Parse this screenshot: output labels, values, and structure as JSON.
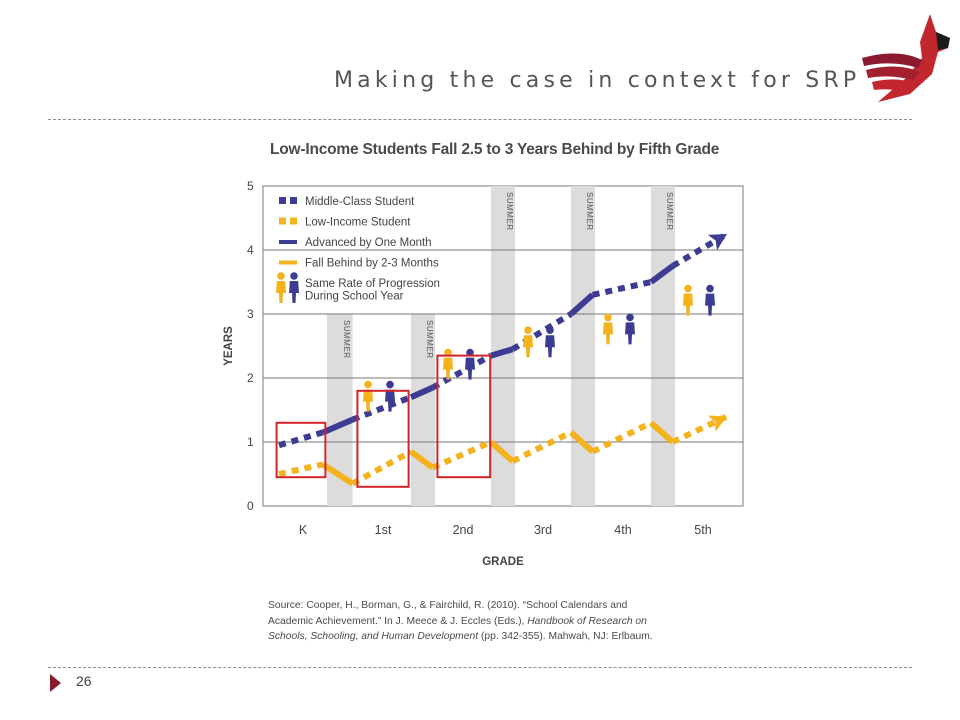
{
  "slide": {
    "title": "Making the case in context for SRP",
    "page_number": "26"
  },
  "colors": {
    "middle_class": "#3c3c92",
    "low_income": "#f4b21c",
    "highlight_box": "#d0232a",
    "summer_band": "#dcdcdc",
    "accent": "#8b1a2e"
  },
  "chart_data": {
    "type": "line",
    "title": "Low-Income Students Fall 2.5 to 3 Years Behind by Fifth Grade",
    "xlabel": "GRADE",
    "ylabel": "YEARS",
    "categories": [
      "K",
      "1st",
      "2nd",
      "3rd",
      "4th",
      "5th"
    ],
    "yticks": [
      "0",
      "1",
      "2",
      "3",
      "4",
      "5"
    ],
    "ylim": [
      0,
      5
    ],
    "grid": true,
    "legend_position": "top-left",
    "legend": [
      "Middle-Class Student",
      "Low-Income Student",
      "Advanced by One Month",
      "Fall Behind by 2-3 Months",
      "Same Rate of Progression During School Year"
    ],
    "summer_label": "SUMMER",
    "series": [
      {
        "name": "Middle-Class Student",
        "color": "#3c3c92",
        "x": [
          -0.3,
          0.25,
          0.62,
          1.35,
          1.62,
          2.35,
          2.62,
          3.35,
          3.62,
          4.35,
          4.62,
          5.3
        ],
        "y": [
          0.95,
          1.15,
          1.35,
          1.7,
          1.85,
          2.35,
          2.45,
          3.0,
          3.3,
          3.5,
          3.75,
          4.25
        ]
      },
      {
        "name": "Low-Income Student",
        "color": "#f4b21c",
        "x": [
          -0.3,
          0.25,
          0.62,
          1.35,
          1.62,
          2.35,
          2.62,
          3.35,
          3.62,
          4.35,
          4.62,
          5.3
        ],
        "y": [
          0.5,
          0.65,
          0.35,
          0.85,
          0.6,
          1.0,
          0.7,
          1.15,
          0.85,
          1.3,
          1.0,
          1.4
        ]
      }
    ],
    "summers": [
      {
        "x_start": 0.3,
        "x_end": 0.62,
        "y_top": 3.0
      },
      {
        "x_start": 1.35,
        "x_end": 1.65,
        "y_top": 3.0
      },
      {
        "x_start": 2.35,
        "x_end": 2.65,
        "y_top": 5.0
      },
      {
        "x_start": 3.35,
        "x_end": 3.65,
        "y_top": 5.0
      },
      {
        "x_start": 4.35,
        "x_end": 4.65,
        "y_top": 5.0
      }
    ],
    "figure_pairs": [
      {
        "x": 0.95,
        "y": 1.6
      },
      {
        "x": 1.95,
        "y": 2.1
      },
      {
        "x": 2.95,
        "y": 2.45
      },
      {
        "x": 3.95,
        "y": 2.65
      },
      {
        "x": 4.95,
        "y": 3.1
      }
    ],
    "highlight_boxes": [
      {
        "x_start": -0.33,
        "x_end": 0.28,
        "y_bottom": 0.45,
        "y_top": 1.3
      },
      {
        "x_start": 0.68,
        "x_end": 1.32,
        "y_bottom": 0.3,
        "y_top": 1.8
      },
      {
        "x_start": 1.68,
        "x_end": 2.34,
        "y_bottom": 0.45,
        "y_top": 2.35
      }
    ]
  },
  "source": {
    "line1": "Source: Cooper, H., Borman, G., & Fairchild, R. (2010). “School Calendars and",
    "line2_plain": "Academic Achievement.” In J. Meece & J. Eccles (Eds.),",
    "line2_italic": "Handbook of Research on",
    "line3_italic": "Schools, Schooling, and Human Development",
    "line3_plain": "(pp. 342-355). Mahwah, NJ: Erlbaum."
  }
}
